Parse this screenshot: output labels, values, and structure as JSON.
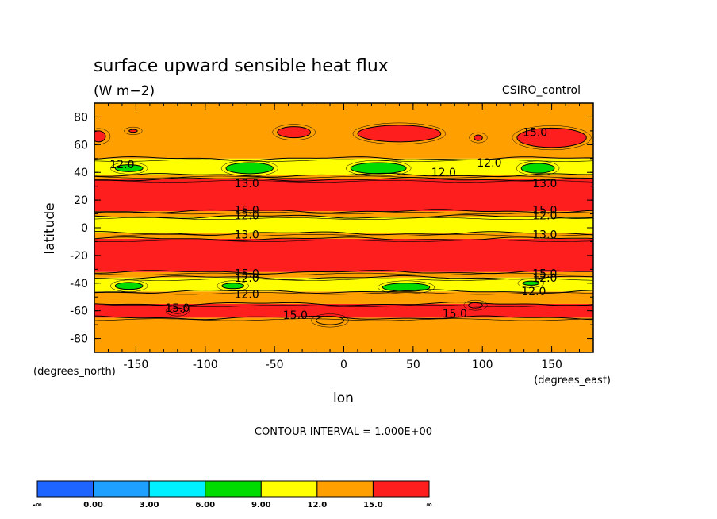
{
  "chart_data": {
    "type": "contour",
    "title": "surface upward sensible heat flux",
    "units": "(W m−2)",
    "dataset": "CSIRO_control",
    "xlabel": "lon",
    "ylabel": "latitude",
    "x_units": "(degrees_east)",
    "y_units": "(degrees_north)",
    "xlim": [
      -180,
      180
    ],
    "ylim": [
      -90,
      90
    ],
    "x_ticks": [
      -150,
      -100,
      -50,
      0,
      50,
      100,
      150
    ],
    "y_ticks": [
      -80,
      -60,
      -40,
      -20,
      0,
      20,
      40,
      60,
      80
    ],
    "contour_interval_text": "CONTOUR INTERVAL = 1.000E+00",
    "zonal_bands": [
      {
        "lat_from": -90,
        "lat_to": -65,
        "level": "12-15"
      },
      {
        "lat_from": -65,
        "lat_to": -55,
        "level": "15+"
      },
      {
        "lat_from": -55,
        "lat_to": -46,
        "level": "12-15"
      },
      {
        "lat_from": -46,
        "lat_to": -36,
        "level": "9-12"
      },
      {
        "lat_from": -36,
        "lat_to": -32,
        "level": "12-15"
      },
      {
        "lat_from": -32,
        "lat_to": -8,
        "level": "15+"
      },
      {
        "lat_from": -8,
        "lat_to": -4,
        "level": "12-15"
      },
      {
        "lat_from": -4,
        "lat_to": 8,
        "level": "9-12"
      },
      {
        "lat_from": 8,
        "lat_to": 12,
        "level": "12-15"
      },
      {
        "lat_from": 12,
        "lat_to": 35,
        "level": "15+"
      },
      {
        "lat_from": 35,
        "lat_to": 38,
        "level": "12-15"
      },
      {
        "lat_from": 38,
        "lat_to": 50,
        "level": "9-12"
      },
      {
        "lat_from": 50,
        "lat_to": 90,
        "level": "12-15"
      }
    ],
    "patches": [
      {
        "lon": -155,
        "lat": 43,
        "rlon": 10,
        "rlat": 2.5,
        "level": "6-9"
      },
      {
        "lon": -68,
        "lat": 43,
        "rlon": 17,
        "rlat": 4,
        "level": "6-9"
      },
      {
        "lon": 25,
        "lat": 43,
        "rlon": 20,
        "rlat": 4,
        "level": "6-9"
      },
      {
        "lon": 140,
        "lat": 43,
        "rlon": 12,
        "rlat": 3.5,
        "level": "6-9"
      },
      {
        "lon": -155,
        "lat": -42,
        "rlon": 10,
        "rlat": 2.5,
        "level": "6-9"
      },
      {
        "lon": -80,
        "lat": -42,
        "rlon": 8,
        "rlat": 2,
        "level": "6-9"
      },
      {
        "lon": 45,
        "lat": -43,
        "rlon": 17,
        "rlat": 3,
        "level": "6-9"
      },
      {
        "lon": 135,
        "lat": -40,
        "rlon": 6,
        "rlat": 1.5,
        "level": "6-9"
      },
      {
        "lon": -152,
        "lat": 70,
        "rlon": 3,
        "rlat": 1,
        "level": "15+"
      },
      {
        "lon": -36,
        "lat": 69,
        "rlon": 12,
        "rlat": 4,
        "level": "15+"
      },
      {
        "lon": 40,
        "lat": 68,
        "rlon": 30,
        "rlat": 6,
        "level": "15+"
      },
      {
        "lon": 150,
        "lat": 65,
        "rlon": 25,
        "rlat": 7,
        "level": "15+"
      },
      {
        "lon": -177,
        "lat": 66,
        "rlon": 5,
        "rlat": 4,
        "level": "15+"
      },
      {
        "lon": 97,
        "lat": 65,
        "rlon": 3,
        "rlat": 2,
        "level": "15+"
      },
      {
        "lon": -10,
        "lat": -67,
        "rlon": 10,
        "rlat": 3,
        "level": "12-15"
      },
      {
        "lon": -120,
        "lat": -60,
        "rlon": 5,
        "rlat": 2,
        "level": "15+"
      },
      {
        "lon": 95,
        "lat": -56,
        "rlon": 5,
        "rlat": 2,
        "level": "15+"
      }
    ],
    "contour_labels": [
      {
        "text": "12.0",
        "lon": -160,
        "lat": 46
      },
      {
        "text": "12.0",
        "lon": 105,
        "lat": 47
      },
      {
        "text": "12.0",
        "lon": 72,
        "lat": 40
      },
      {
        "text": "13.0",
        "lon": -70,
        "lat": 32
      },
      {
        "text": "13.0",
        "lon": 145,
        "lat": 32
      },
      {
        "text": "15.0",
        "lon": 138,
        "lat": 69
      },
      {
        "text": "15.0",
        "lon": -70,
        "lat": 13
      },
      {
        "text": "12.0",
        "lon": -70,
        "lat": 9
      },
      {
        "text": "15.0",
        "lon": 145,
        "lat": 13
      },
      {
        "text": "12.0",
        "lon": 145,
        "lat": 9
      },
      {
        "text": "13.0",
        "lon": -70,
        "lat": -5
      },
      {
        "text": "13.0",
        "lon": 145,
        "lat": -5
      },
      {
        "text": "15.0",
        "lon": -70,
        "lat": -33
      },
      {
        "text": "12.0",
        "lon": -70,
        "lat": -36
      },
      {
        "text": "15.0",
        "lon": 145,
        "lat": -33
      },
      {
        "text": "12.0",
        "lon": 145,
        "lat": -36
      },
      {
        "text": "12.0",
        "lon": -70,
        "lat": -48
      },
      {
        "text": "12.0",
        "lon": 137,
        "lat": -46
      },
      {
        "text": "15.0",
        "lon": -120,
        "lat": -58
      },
      {
        "text": "15.0",
        "lon": -35,
        "lat": -63
      },
      {
        "text": "15.0",
        "lon": 80,
        "lat": -62
      }
    ],
    "colorbar": {
      "colors": [
        "#1e64ff",
        "#1ea0ff",
        "#00f0ff",
        "#00dc00",
        "#ffff00",
        "#ffa000",
        "#ff1e1e"
      ],
      "labels": [
        "-∞",
        "0.00",
        "3.00",
        "6.00",
        "9.00",
        "12.0",
        "15.0",
        "∞"
      ]
    },
    "level_colors": {
      "6-9": "#00dc00",
      "9-12": "#ffff00",
      "12-15": "#ffa000",
      "15+": "#ff1e1e"
    }
  }
}
